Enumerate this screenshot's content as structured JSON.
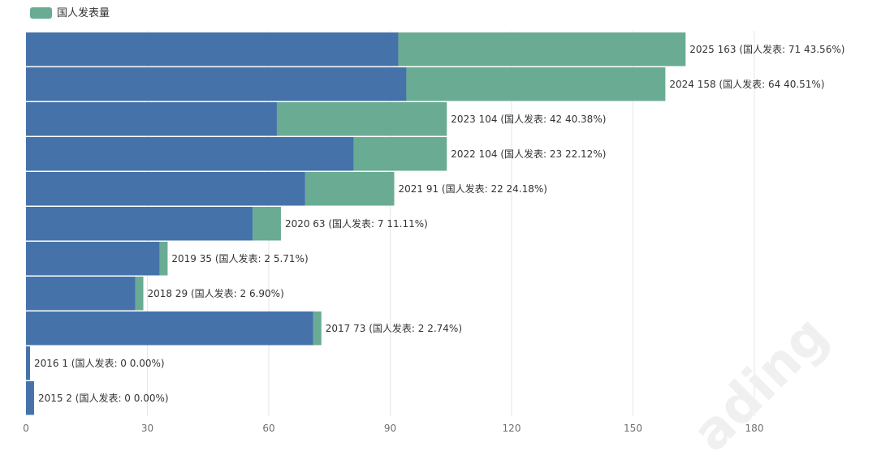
{
  "chart_data": {
    "type": "bar",
    "orientation": "horizontal",
    "stacked": true,
    "legend": {
      "position": "top-left",
      "entries": [
        "国人发表量"
      ]
    },
    "categories": [
      "2025",
      "2024",
      "2023",
      "2022",
      "2021",
      "2020",
      "2019",
      "2018",
      "2017",
      "2016",
      "2015"
    ],
    "totals": [
      163,
      158,
      104,
      104,
      91,
      63,
      35,
      29,
      73,
      1,
      2
    ],
    "series": [
      {
        "values": [
          92,
          94,
          62,
          81,
          69,
          56,
          33,
          27,
          71,
          1,
          2
        ],
        "color": "#4672aa"
      },
      {
        "name": "国人发表量",
        "values": [
          71,
          64,
          42,
          23,
          22,
          7,
          2,
          2,
          2,
          0,
          0
        ],
        "color": "#6aab94"
      }
    ],
    "data_labels": [
      "2025 163 (国人发表: 71 43.56%)",
      "2024 158 (国人发表: 64 40.51%)",
      "2023 104 (国人发表: 42 40.38%)",
      "2022 104 (国人发表: 23 22.12%)",
      "2021 91 (国人发表: 22 24.18%)",
      "2020 63 (国人发表: 7 11.11%)",
      "2019 35 (国人发表: 2 5.71%)",
      "2018 29 (国人发表: 2 6.90%)",
      "2017 73 (国人发表: 2 2.74%)",
      "2016 1 (国人发表: 0 0.00%)",
      "2015 2 (国人发表: 0 0.00%)"
    ],
    "xlim": [
      0,
      180
    ],
    "xticks": [
      0,
      30,
      60,
      90,
      120,
      150,
      180
    ],
    "grid": true
  },
  "watermark": "ading"
}
